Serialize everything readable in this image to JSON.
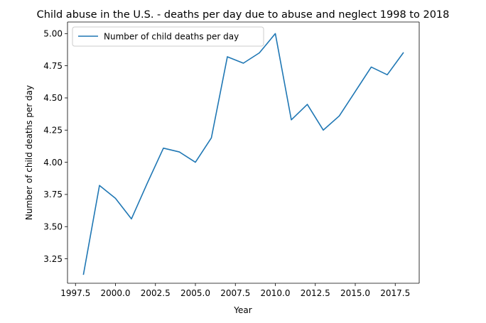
{
  "chart_data": {
    "type": "line",
    "title": "Child abuse in the U.S. - deaths per day due to abuse and neglect 1998 to 2018",
    "xlabel": "Year",
    "ylabel": "Number of child deaths per day",
    "xlim": [
      1997.0,
      2019.0
    ],
    "ylim": [
      3.06,
      5.09
    ],
    "xticks": [
      1997.5,
      2000.0,
      2002.5,
      2005.0,
      2007.5,
      2010.0,
      2012.5,
      2015.0,
      2017.5
    ],
    "xtick_labels": [
      "1997.5",
      "2000.0",
      "2002.5",
      "2005.0",
      "2007.5",
      "2010.0",
      "2012.5",
      "2015.0",
      "2017.5"
    ],
    "yticks": [
      3.25,
      3.5,
      3.75,
      4.0,
      4.25,
      4.5,
      4.75,
      5.0
    ],
    "ytick_labels": [
      "3.25",
      "3.50",
      "3.75",
      "4.00",
      "4.25",
      "4.50",
      "4.75",
      "5.00"
    ],
    "grid": false,
    "legend_position": "upper-left",
    "series": [
      {
        "name": "Number of child deaths per day",
        "color": "#1f77b4",
        "x": [
          1998,
          1999,
          2000,
          2001,
          2002,
          2003,
          2004,
          2005,
          2006,
          2007,
          2008,
          2009,
          2010,
          2011,
          2012,
          2013,
          2014,
          2015,
          2016,
          2017,
          2018
        ],
        "y": [
          3.13,
          3.82,
          3.72,
          3.56,
          3.84,
          4.11,
          4.08,
          4.0,
          4.19,
          4.82,
          4.77,
          4.85,
          5.0,
          4.33,
          4.45,
          4.25,
          4.36,
          4.55,
          4.74,
          4.68,
          4.85
        ]
      }
    ]
  }
}
